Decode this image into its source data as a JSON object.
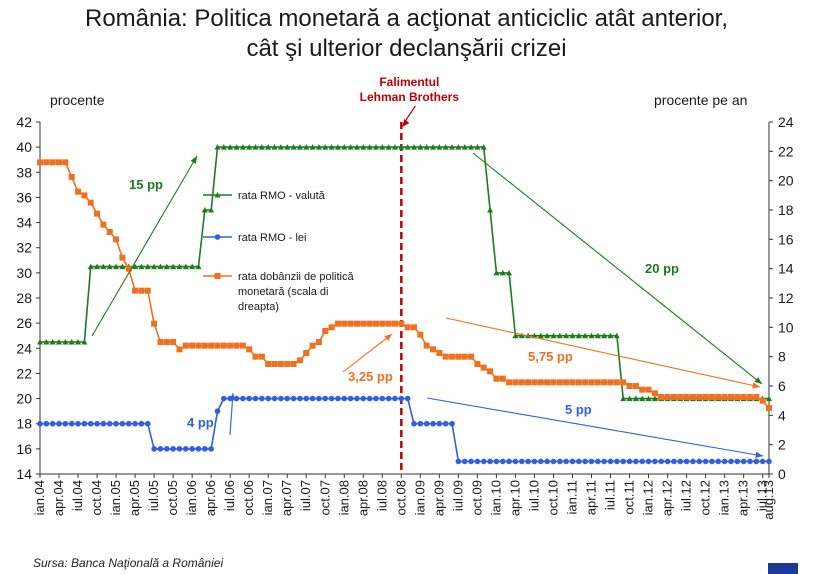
{
  "title_line1": "România: Politica monetară a acţionat anticiclic atât anterior,",
  "title_line2": "cât şi ulterior declanşării crizei",
  "left_unit": "procente",
  "right_unit": "procente pe an",
  "source": "Sursa: Banca Naţională a României",
  "event_label_line1": "Falimentul",
  "event_label_line2": "Lehman Brothers",
  "chart_data": {
    "type": "line",
    "y_left_lim": [
      14,
      42
    ],
    "y_left_ticks": [
      14,
      16,
      18,
      20,
      22,
      24,
      26,
      28,
      30,
      32,
      34,
      36,
      38,
      40,
      42
    ],
    "y_right_lim": [
      0,
      24
    ],
    "y_right_ticks": [
      0,
      2,
      4,
      6,
      8,
      10,
      12,
      14,
      16,
      18,
      20,
      22,
      24
    ],
    "x_tick_labels": [
      "ian.04",
      "apr.04",
      "iul.04",
      "oct.04",
      "ian.05",
      "apr.05",
      "iul.05",
      "oct.05",
      "ian.06",
      "apr.06",
      "iul.06",
      "oct.06",
      "ian.07",
      "apr.07",
      "iul.07",
      "oct.07",
      "ian.08",
      "apr.08",
      "iul.08",
      "oct.08",
      "ian.09",
      "apr.09",
      "iul.09",
      "oct.09",
      "ian.10",
      "apr.10",
      "iul.10",
      "oct.10",
      "ian.11",
      "apr.11",
      "iul.11",
      "oct.11",
      "ian.12",
      "apr.12",
      "iul.12",
      "oct.12",
      "ian.13",
      "apr.13",
      "iul.13",
      "aug.13"
    ],
    "event": {
      "month_index": 57,
      "color": "#c00000"
    },
    "series": [
      {
        "name": "rata RMO - valută",
        "axis": "left",
        "color": "#1e7b1e",
        "marker": "triangle",
        "segments": [
          [
            0,
            24.5
          ],
          [
            7,
            24.5
          ],
          [
            8,
            30.5
          ],
          [
            25,
            30.5
          ],
          [
            26,
            35
          ],
          [
            27,
            35
          ],
          [
            28,
            40
          ],
          [
            70,
            40
          ],
          [
            71,
            35
          ],
          [
            72,
            30
          ],
          [
            74,
            30
          ],
          [
            75,
            25
          ],
          [
            91,
            25
          ],
          [
            92,
            20
          ],
          [
            115,
            20
          ]
        ]
      },
      {
        "name": "rata RMO - lei",
        "axis": "left",
        "color": "#3060e0",
        "marker": "circle",
        "segments": [
          [
            0,
            18
          ],
          [
            17,
            18
          ],
          [
            18,
            16
          ],
          [
            27,
            16
          ],
          [
            28,
            19
          ],
          [
            29,
            20
          ],
          [
            58,
            20
          ],
          [
            59,
            18
          ],
          [
            65,
            18
          ],
          [
            66,
            15
          ],
          [
            115,
            15
          ]
        ]
      },
      {
        "name": "rata dobânzii de politică monetară (scala din dreapta)",
        "axis": "right",
        "color": "#f07020",
        "marker": "square",
        "values": [
          21.25,
          21.25,
          21.25,
          21.25,
          21.25,
          21.25,
          20.25,
          20.25,
          19.25,
          19.25,
          19,
          18.5,
          17.75,
          17.5,
          17,
          16.5,
          16.0,
          15.5,
          14.75,
          14.0,
          12.75,
          12.5,
          12.5,
          12.5,
          12.5,
          10.25,
          9.0,
          9.0,
          9.0,
          9.0,
          8.5,
          8.5,
          8.75,
          8.75,
          8.75,
          8.75,
          8.75,
          8.75,
          8.75,
          8.75,
          8.75,
          8.75,
          8.75,
          8.75,
          8.75,
          8.5,
          8.25,
          8.0,
          8.0,
          7.5,
          7.5,
          7.5,
          7.5,
          7.5,
          7.5,
          7.5,
          7.75,
          8.0,
          8.25,
          8.75,
          9.0,
          9.5,
          9.75,
          10.0,
          10.0,
          10.25,
          10.25,
          10.25,
          10.25,
          10.25,
          10.25,
          10.25,
          10.25,
          10.25,
          10.25,
          10.25,
          10.25,
          10.25,
          10.25,
          10.0,
          10.0,
          10.0,
          9.5,
          9.5,
          8.75,
          8.5,
          8.5,
          8.25,
          8.0,
          8.0,
          8.0,
          8.0,
          8.0,
          8.0,
          7.5,
          7.5,
          7.25,
          7.0,
          7.0,
          6.5,
          6.5,
          6.5,
          6.25,
          6.25,
          6.25,
          6.25,
          6.25,
          6.25,
          6.25,
          6.25,
          6.25,
          6.25,
          6.25,
          6.25,
          6.25,
          6.25,
          6.25,
          6.25,
          6.25,
          6.25,
          6.25,
          6.25,
          6.25,
          6.25,
          6.25,
          6.25,
          6.25,
          6.25,
          6.0,
          6.0,
          6.0,
          5.75,
          5.75,
          5.5,
          5.5,
          5.25,
          5.25,
          5.25,
          5.25,
          5.25,
          5.25,
          5.25,
          5.25,
          5.25,
          5.25,
          5.25,
          5.25,
          5.25,
          5.25,
          5.25,
          5.25,
          5.25,
          5.25,
          5.25,
          5.25,
          5.25,
          5.25,
          5.0,
          4.5
        ]
      }
    ],
    "annotations": [
      {
        "text": "15 pp",
        "color": "#1e7b1e"
      },
      {
        "text": "4 pp",
        "color": "#3060e0"
      },
      {
        "text": "3,25 pp",
        "color": "#f07020"
      },
      {
        "text": "20 pp",
        "color": "#1e7b1e"
      },
      {
        "text": "5,75 pp",
        "color": "#f07020"
      },
      {
        "text": "5 pp",
        "color": "#3060e0"
      }
    ]
  }
}
